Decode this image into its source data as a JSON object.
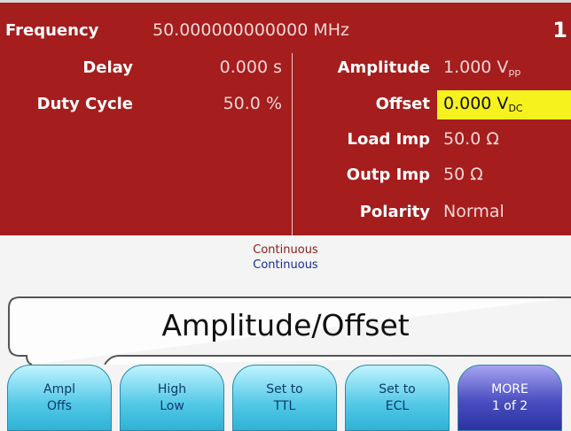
{
  "header": {
    "frequency_label": "Frequency",
    "frequency_value": "50.000000000000 MHz",
    "channel": "1"
  },
  "left_params": [
    {
      "label": "Delay",
      "value": "0.000 s"
    },
    {
      "label": "Duty Cycle",
      "value": "50.0 %"
    }
  ],
  "right_params": [
    {
      "label": "Amplitude",
      "value": "1.000 V",
      "sub": "pp"
    },
    {
      "label": "Offset",
      "value": "0.000 V",
      "sub": "DC"
    },
    {
      "label": "Load Imp",
      "value": "50.0 Ω"
    },
    {
      "label": "Outp Imp",
      "value": "50 Ω"
    },
    {
      "label": "Polarity",
      "value": "Normal"
    }
  ],
  "status": [
    "Continuous",
    "Continuous"
  ],
  "menu_title": "Amplitude/Offset",
  "softkeys": [
    [
      "Ampl",
      "Offs"
    ],
    [
      "High",
      "Low"
    ],
    [
      "Set to",
      "TTL"
    ],
    [
      "Set to",
      "ECL"
    ],
    [
      "MORE",
      "1 of 2"
    ]
  ]
}
